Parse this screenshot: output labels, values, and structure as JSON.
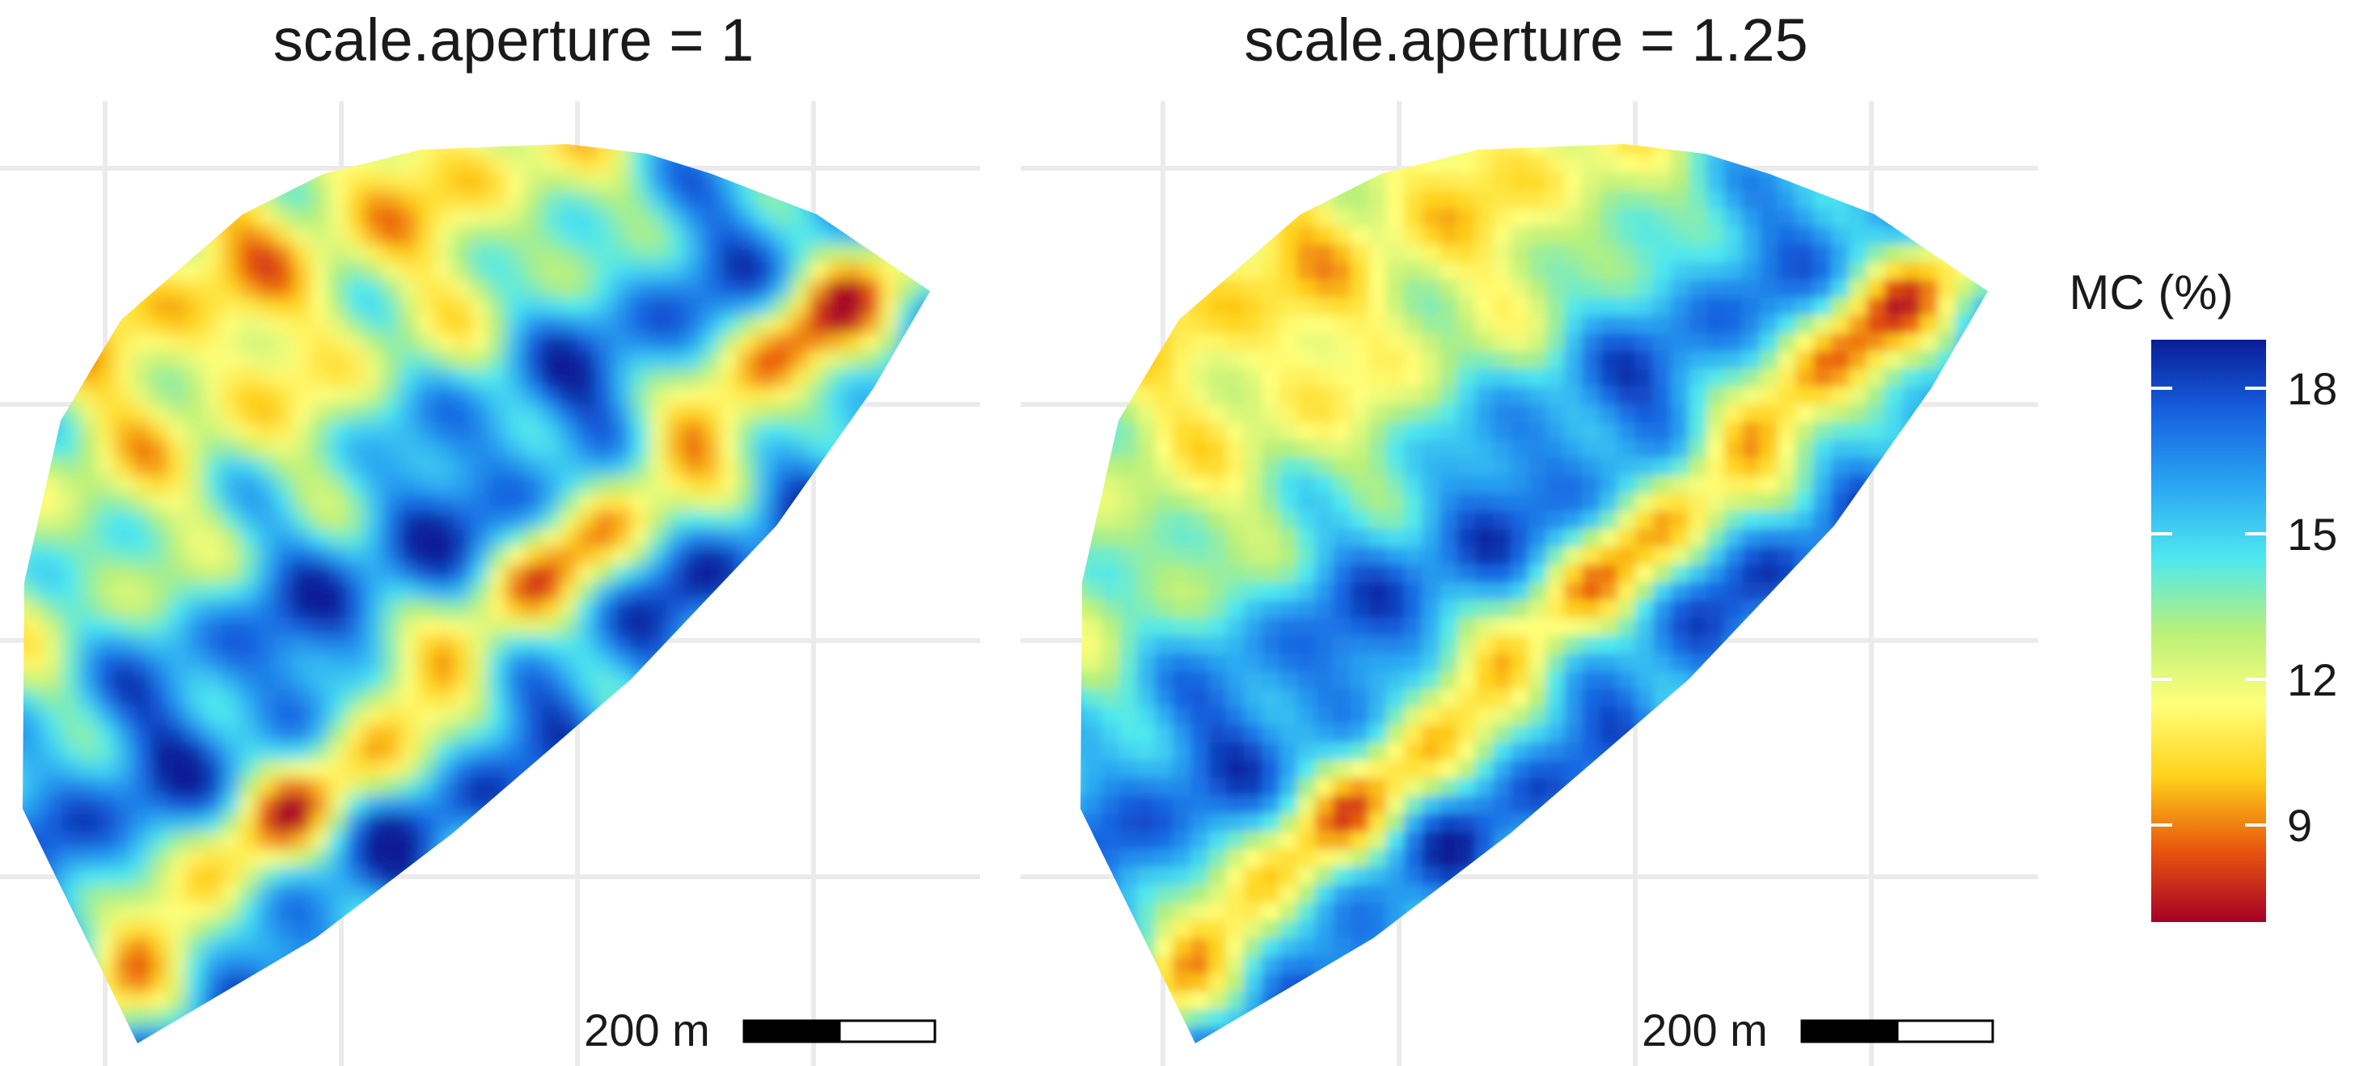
{
  "chart_data": [
    {
      "type": "heatmap",
      "title": "scale.aperture = 1",
      "grid": true,
      "scale_bar_label": "200 m"
    },
    {
      "type": "heatmap",
      "title": "scale.aperture = 1.25",
      "grid": true,
      "scale_bar_label": "200 m"
    }
  ],
  "legend": {
    "title": "MC (%)",
    "placement": "right",
    "ticks": [
      18,
      15,
      12,
      9
    ],
    "tick_labels": [
      "18",
      "15",
      "12",
      "9"
    ],
    "range": [
      7,
      19
    ],
    "colors": [
      "#a50026",
      "#e8570e",
      "#ffd21a",
      "#ffff7a",
      "#b8f07a",
      "#4ee8f0",
      "#2aa6f2",
      "#1662e0",
      "#0a1c96"
    ]
  }
}
